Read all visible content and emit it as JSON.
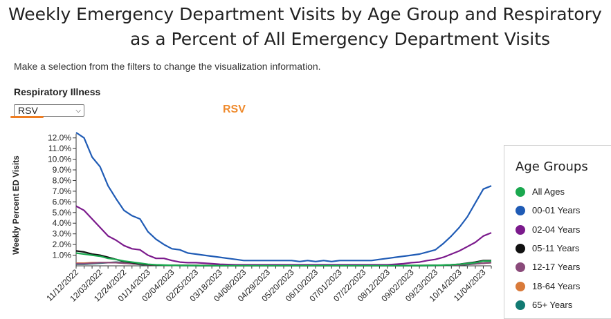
{
  "title_line1": "Weekly Emergency Department Visits by Age Group and Respiratory",
  "title_line2": "as a Percent of All Emergency Department Visits",
  "instructions": "Make a selection from the filters to change the visualization information.",
  "filter": {
    "label": "Respiratory Illness",
    "selected": "RSV"
  },
  "selected_heading": "RSV",
  "legend": {
    "title": "Age Groups"
  },
  "chart_data": {
    "type": "line",
    "ylabel": "Weekly Percent ED Visits",
    "xlabel": "",
    "ylim": [
      0,
      12.5
    ],
    "yticks": [
      "1.0%",
      "2.0%",
      "3.0%",
      "4.0%",
      "5.0%",
      "6.0%",
      "7.0%",
      "8.0%",
      "9.0%",
      "10.0%",
      "11.0%",
      "12.0%"
    ],
    "x": [
      "11/12/2022",
      "11/19/2022",
      "11/26/2022",
      "12/03/2022",
      "12/10/2022",
      "12/17/2022",
      "12/24/2022",
      "12/31/2022",
      "01/07/2023",
      "01/14/2023",
      "01/21/2023",
      "01/28/2023",
      "02/04/2023",
      "02/11/2023",
      "02/18/2023",
      "02/25/2023",
      "03/04/2023",
      "03/11/2023",
      "03/18/2023",
      "03/25/2023",
      "04/01/2023",
      "04/08/2023",
      "04/15/2023",
      "04/22/2023",
      "04/29/2023",
      "05/06/2023",
      "05/13/2023",
      "05/20/2023",
      "05/27/2023",
      "06/03/2023",
      "06/10/2023",
      "06/17/2023",
      "06/24/2023",
      "07/01/2023",
      "07/08/2023",
      "07/15/2023",
      "07/22/2023",
      "07/29/2023",
      "08/05/2023",
      "08/12/2023",
      "08/19/2023",
      "08/26/2023",
      "09/02/2023",
      "09/09/2023",
      "09/16/2023",
      "09/23/2023",
      "09/30/2023",
      "10/07/2023",
      "10/14/2023",
      "10/21/2023",
      "10/28/2023",
      "11/04/2023",
      "11/11/2023"
    ],
    "xtick_labels": [
      "11/12/2022",
      "12/03/2022",
      "12/24/2022",
      "01/14/2023",
      "02/04/2023",
      "02/25/2023",
      "03/18/2023",
      "04/08/2023",
      "04/29/2023",
      "05/20/2023",
      "06/10/2023",
      "07/01/2023",
      "07/22/2023",
      "08/12/2023",
      "09/02/2023",
      "09/23/2023",
      "10/14/2023",
      "11/04/2023"
    ],
    "grid": false,
    "legend_position": "right",
    "series": [
      {
        "name": "All Ages",
        "color": "#1aa84f",
        "values": [
          1.2,
          1.1,
          1.0,
          0.9,
          0.7,
          0.6,
          0.45,
          0.35,
          0.25,
          0.15,
          0.1,
          0.07,
          0.05,
          0.04,
          0.03,
          0.03,
          0.02,
          0.02,
          0.02,
          0.02,
          0.02,
          0.02,
          0.02,
          0.02,
          0.02,
          0.02,
          0.02,
          0.02,
          0.02,
          0.02,
          0.02,
          0.02,
          0.02,
          0.02,
          0.02,
          0.02,
          0.02,
          0.02,
          0.02,
          0.02,
          0.02,
          0.02,
          0.03,
          0.03,
          0.04,
          0.05,
          0.07,
          0.1,
          0.15,
          0.22,
          0.3,
          0.45,
          0.45
        ]
      },
      {
        "name": "00-01 Years",
        "color": "#1f5bb5",
        "values": [
          12.5,
          12.0,
          10.2,
          9.3,
          7.5,
          6.3,
          5.2,
          4.7,
          4.4,
          3.2,
          2.5,
          2.0,
          1.6,
          1.5,
          1.2,
          1.1,
          1.0,
          0.9,
          0.8,
          0.7,
          0.6,
          0.5,
          0.5,
          0.5,
          0.5,
          0.5,
          0.5,
          0.5,
          0.4,
          0.5,
          0.4,
          0.5,
          0.4,
          0.5,
          0.5,
          0.5,
          0.5,
          0.5,
          0.6,
          0.7,
          0.8,
          0.9,
          1.0,
          1.1,
          1.3,
          1.5,
          2.1,
          2.8,
          3.6,
          4.6,
          5.9,
          7.2,
          7.5
        ]
      },
      {
        "name": "02-04 Years",
        "color": "#7b1a8c",
        "values": [
          5.6,
          5.2,
          4.4,
          3.6,
          2.8,
          2.4,
          1.9,
          1.6,
          1.5,
          1.0,
          0.7,
          0.7,
          0.5,
          0.35,
          0.3,
          0.3,
          0.25,
          0.2,
          0.15,
          0.12,
          0.1,
          0.1,
          0.1,
          0.1,
          0.1,
          0.1,
          0.1,
          0.1,
          0.1,
          0.1,
          0.1,
          0.1,
          0.1,
          0.1,
          0.1,
          0.1,
          0.1,
          0.1,
          0.1,
          0.1,
          0.15,
          0.2,
          0.3,
          0.35,
          0.5,
          0.6,
          0.8,
          1.1,
          1.4,
          1.8,
          2.2,
          2.8,
          3.1
        ]
      },
      {
        "name": "05-11 Years",
        "color": "#111111",
        "values": [
          1.4,
          1.3,
          1.1,
          1.0,
          0.8,
          0.6,
          0.4,
          0.3,
          0.2,
          0.12,
          0.08,
          0.05,
          0.04,
          0.03,
          0.03,
          0.02,
          0.02,
          0.02,
          0.02,
          0.02,
          0.02,
          0.02,
          0.02,
          0.02,
          0.02,
          0.02,
          0.02,
          0.02,
          0.02,
          0.02,
          0.02,
          0.02,
          0.02,
          0.02,
          0.02,
          0.02,
          0.02,
          0.02,
          0.02,
          0.02,
          0.02,
          0.02,
          0.02,
          0.02,
          0.03,
          0.04,
          0.06,
          0.1,
          0.15,
          0.25,
          0.35,
          0.5,
          0.5
        ]
      },
      {
        "name": "12-17 Years",
        "color": "#8a4a7a",
        "values": [
          0.2,
          0.2,
          0.25,
          0.3,
          0.3,
          0.3,
          0.25,
          0.2,
          0.15,
          0.1,
          0.08,
          0.06,
          0.05,
          0.05,
          0.04,
          0.04,
          0.03,
          0.03,
          0.03,
          0.03,
          0.03,
          0.03,
          0.03,
          0.03,
          0.03,
          0.03,
          0.03,
          0.03,
          0.03,
          0.03,
          0.03,
          0.03,
          0.03,
          0.03,
          0.03,
          0.03,
          0.03,
          0.03,
          0.03,
          0.03,
          0.03,
          0.03,
          0.03,
          0.03,
          0.04,
          0.05,
          0.06,
          0.08,
          0.1,
          0.15,
          0.2,
          0.25,
          0.3
        ]
      },
      {
        "name": "18-64 Years",
        "color": "#d97a3a",
        "values": [
          0.25,
          0.25,
          0.3,
          0.3,
          0.3,
          0.3,
          0.25,
          0.2,
          0.15,
          0.1,
          0.08,
          0.06,
          0.05,
          0.05,
          0.04,
          0.04,
          0.03,
          0.03,
          0.03,
          0.03,
          0.03,
          0.03,
          0.03,
          0.03,
          0.03,
          0.03,
          0.03,
          0.03,
          0.03,
          0.03,
          0.03,
          0.03,
          0.03,
          0.03,
          0.03,
          0.03,
          0.03,
          0.03,
          0.03,
          0.03,
          0.03,
          0.03,
          0.03,
          0.03,
          0.04,
          0.05,
          0.06,
          0.08,
          0.1,
          0.15,
          0.2,
          0.25,
          0.3
        ]
      },
      {
        "name": "65+ Years",
        "color": "#127a72",
        "values": [
          0.15,
          0.15,
          0.2,
          0.25,
          0.3,
          0.35,
          0.3,
          0.2,
          0.12,
          0.08,
          0.06,
          0.05,
          0.04,
          0.03,
          0.03,
          0.03,
          0.02,
          0.02,
          0.02,
          0.02,
          0.02,
          0.02,
          0.02,
          0.02,
          0.02,
          0.02,
          0.02,
          0.02,
          0.02,
          0.02,
          0.02,
          0.02,
          0.02,
          0.02,
          0.02,
          0.02,
          0.02,
          0.02,
          0.02,
          0.02,
          0.02,
          0.02,
          0.02,
          0.02,
          0.02,
          0.03,
          0.04,
          0.05,
          0.08,
          0.12,
          0.18,
          0.25,
          0.3
        ]
      }
    ]
  }
}
